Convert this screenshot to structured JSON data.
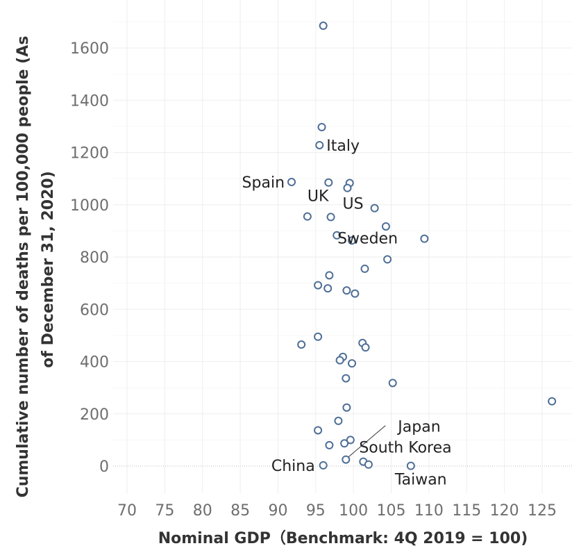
{
  "chart_data": {
    "type": "scatter",
    "title": "",
    "xlabel": "Nominal GDP（Benchmark: 4Q 2019 = 100)",
    "ylabel_lines": [
      "Cumulative number of deaths per 100,000 people (As",
      "of December 31, 2020)"
    ],
    "xlim": [
      68,
      129
    ],
    "ylim": [
      -100,
      1750
    ],
    "x_ticks": [
      70,
      75,
      80,
      85,
      90,
      95,
      100,
      105,
      110,
      115,
      120,
      125
    ],
    "y_ticks": [
      0,
      200,
      400,
      600,
      800,
      1000,
      1200,
      1400,
      1600
    ],
    "grid": true,
    "legend": "none",
    "point_color": "#4e6e96",
    "points": [
      {
        "x": 96.0,
        "y": 1685
      },
      {
        "x": 95.8,
        "y": 1297
      },
      {
        "x": 95.5,
        "y": 1228,
        "label": "Italy"
      },
      {
        "x": 91.8,
        "y": 1087,
        "label": "Spain"
      },
      {
        "x": 96.7,
        "y": 1085
      },
      {
        "x": 99.5,
        "y": 1083
      },
      {
        "x": 99.2,
        "y": 1064,
        "label": "US"
      },
      {
        "x": 102.8,
        "y": 987
      },
      {
        "x": 93.9,
        "y": 955,
        "label": "UK"
      },
      {
        "x": 97.0,
        "y": 953
      },
      {
        "x": 104.3,
        "y": 917
      },
      {
        "x": 97.8,
        "y": 883
      },
      {
        "x": 109.4,
        "y": 870
      },
      {
        "x": 99.8,
        "y": 863
      },
      {
        "x": 104.5,
        "y": 791,
        "label": "Sweden"
      },
      {
        "x": 101.5,
        "y": 755
      },
      {
        "x": 96.8,
        "y": 730
      },
      {
        "x": 95.3,
        "y": 692
      },
      {
        "x": 96.6,
        "y": 680
      },
      {
        "x": 99.1,
        "y": 672
      },
      {
        "x": 100.2,
        "y": 660
      },
      {
        "x": 95.3,
        "y": 495
      },
      {
        "x": 93.1,
        "y": 465
      },
      {
        "x": 101.2,
        "y": 471
      },
      {
        "x": 101.6,
        "y": 454
      },
      {
        "x": 98.6,
        "y": 418
      },
      {
        "x": 98.2,
        "y": 405
      },
      {
        "x": 99.8,
        "y": 393
      },
      {
        "x": 99.0,
        "y": 336
      },
      {
        "x": 105.2,
        "y": 318
      },
      {
        "x": 126.3,
        "y": 248
      },
      {
        "x": 99.1,
        "y": 224
      },
      {
        "x": 98.0,
        "y": 173
      },
      {
        "x": 95.3,
        "y": 137
      },
      {
        "x": 99.6,
        "y": 100
      },
      {
        "x": 98.8,
        "y": 87
      },
      {
        "x": 96.8,
        "y": 80
      },
      {
        "x": 99.0,
        "y": 25,
        "label": "Japan"
      },
      {
        "x": 101.3,
        "y": 17,
        "label": "South Korea"
      },
      {
        "x": 102.0,
        "y": 6
      },
      {
        "x": 96.0,
        "y": 3,
        "label": "China"
      },
      {
        "x": 107.6,
        "y": 1,
        "label": "Taiwan"
      }
    ]
  }
}
